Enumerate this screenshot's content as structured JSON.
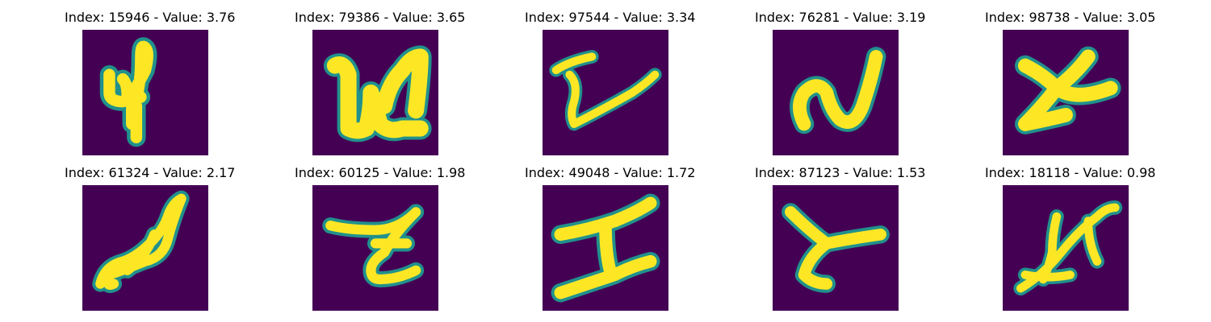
{
  "palette": {
    "background": "#440154",
    "edge": "#21918c",
    "stroke": "#fde725"
  },
  "panels": [
    {
      "index": "15946",
      "value": "3.76",
      "glyph": "handwritten-4"
    },
    {
      "index": "79386",
      "value": "3.65",
      "glyph": "handwritten-n"
    },
    {
      "index": "97544",
      "value": "3.34",
      "glyph": "handwritten-v"
    },
    {
      "index": "76281",
      "value": "3.19",
      "glyph": "handwritten-n"
    },
    {
      "index": "98738",
      "value": "3.05",
      "glyph": "handwritten-y"
    },
    {
      "index": "61324",
      "value": "2.17",
      "glyph": "handwritten-scribble"
    },
    {
      "index": "60125",
      "value": "1.98",
      "glyph": "handwritten-z"
    },
    {
      "index": "49048",
      "value": "1.72",
      "glyph": "handwritten-i"
    },
    {
      "index": "87123",
      "value": "1.53",
      "glyph": "handwritten-y"
    },
    {
      "index": "18118",
      "value": "0.98",
      "glyph": "handwritten-k"
    }
  ]
}
